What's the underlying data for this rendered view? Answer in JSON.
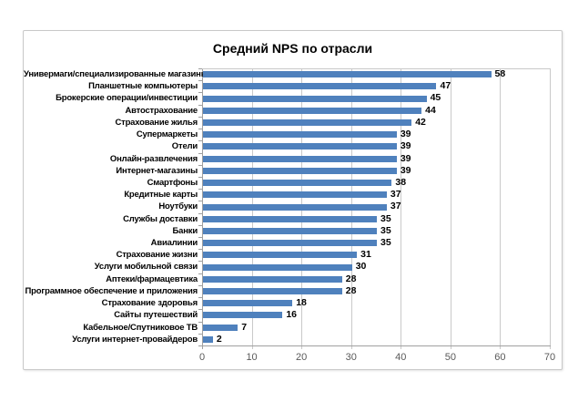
{
  "window": {
    "background": "#ffffff"
  },
  "chart_data": {
    "type": "bar",
    "orientation": "horizontal",
    "title": "Средний NPS по отрасли",
    "categories": [
      "Универмаги/специализированные магазины",
      "Планшетные компьютеры",
      "Брокерские операции/инвестиции",
      "Автострахование",
      "Страхование жилья",
      "Супермаркеты",
      "Отели",
      "Онлайн-развлечения",
      "Интернет-магазины",
      "Смартфоны",
      "Кредитные карты",
      "Ноутбуки",
      "Службы доставки",
      "Банки",
      "Авиалинии",
      "Страхование жизни",
      "Услуги мобильной связи",
      "Аптеки/фармацевтика",
      "Программное обеспечение и приложения",
      "Страхование здоровья",
      "Сайты путешествий",
      "Кабельное/Спутниковое ТВ",
      "Услуги интернет-провайдеров"
    ],
    "values": [
      58,
      47,
      45,
      44,
      42,
      39,
      39,
      39,
      39,
      38,
      37,
      37,
      35,
      35,
      35,
      31,
      30,
      28,
      28,
      18,
      16,
      7,
      2
    ],
    "xlabel": "",
    "ylabel": "",
    "xlim": [
      0,
      70
    ],
    "x_ticks": [
      0,
      10,
      20,
      30,
      40,
      50,
      60,
      70
    ],
    "grid": true,
    "legend": false,
    "data_labels": true,
    "colors": {
      "bar": "#4F81BD",
      "gridline": "#C9C9C9",
      "axis": "#A0A0A0",
      "title_text": "#000000",
      "category_label": "#000000",
      "value_label": "#000000",
      "x_tick_label": "#595959",
      "frame_border": "#C8C8C8",
      "background": "#FFFFFF"
    }
  }
}
